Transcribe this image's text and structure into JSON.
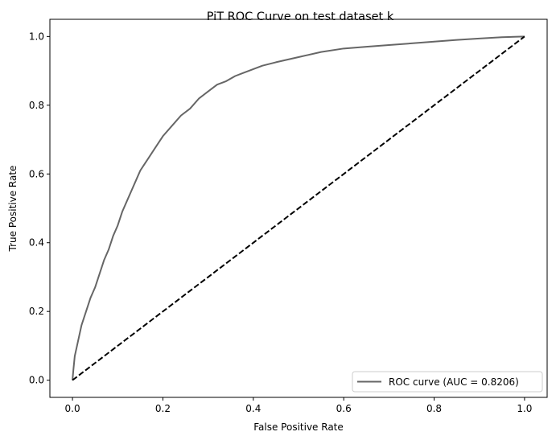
{
  "chart_data": {
    "type": "line",
    "title": "PiT ROC Curve on test dataset k",
    "xlabel": "False Positive Rate",
    "ylabel": "True Positive Rate",
    "xlim": [
      -0.05,
      1.05
    ],
    "ylim": [
      -0.05,
      1.05
    ],
    "xticks": [
      0.0,
      0.2,
      0.4,
      0.6,
      0.8,
      1.0
    ],
    "yticks": [
      0.0,
      0.2,
      0.4,
      0.6,
      0.8,
      1.0
    ],
    "xtick_labels": [
      "0.0",
      "0.2",
      "0.4",
      "0.6",
      "0.8",
      "1.0"
    ],
    "ytick_labels": [
      "0.0",
      "0.2",
      "0.4",
      "0.6",
      "0.8",
      "1.0"
    ],
    "grid": false,
    "legend_position": "lower-right",
    "series": [
      {
        "name": "ROC curve (AUC = 0.8206)",
        "color": "#666666",
        "style": "solid",
        "x": [
          0.0,
          0.002,
          0.005,
          0.01,
          0.015,
          0.02,
          0.03,
          0.04,
          0.05,
          0.06,
          0.07,
          0.08,
          0.09,
          0.1,
          0.11,
          0.12,
          0.13,
          0.14,
          0.15,
          0.16,
          0.17,
          0.18,
          0.19,
          0.2,
          0.22,
          0.24,
          0.26,
          0.28,
          0.3,
          0.32,
          0.34,
          0.36,
          0.38,
          0.4,
          0.42,
          0.45,
          0.5,
          0.55,
          0.6,
          0.65,
          0.7,
          0.75,
          0.8,
          0.85,
          0.9,
          0.95,
          1.0
        ],
        "y": [
          0.0,
          0.03,
          0.07,
          0.1,
          0.13,
          0.16,
          0.2,
          0.24,
          0.27,
          0.31,
          0.35,
          0.38,
          0.42,
          0.45,
          0.49,
          0.52,
          0.55,
          0.58,
          0.61,
          0.63,
          0.65,
          0.67,
          0.69,
          0.71,
          0.74,
          0.77,
          0.79,
          0.82,
          0.84,
          0.86,
          0.87,
          0.885,
          0.895,
          0.905,
          0.915,
          0.925,
          0.94,
          0.955,
          0.965,
          0.97,
          0.975,
          0.98,
          0.985,
          0.99,
          0.994,
          0.998,
          1.0
        ]
      },
      {
        "name": "",
        "color": "#000000",
        "style": "dashed",
        "x": [
          0.0,
          1.0
        ],
        "y": [
          0.0,
          1.0
        ]
      }
    ]
  }
}
